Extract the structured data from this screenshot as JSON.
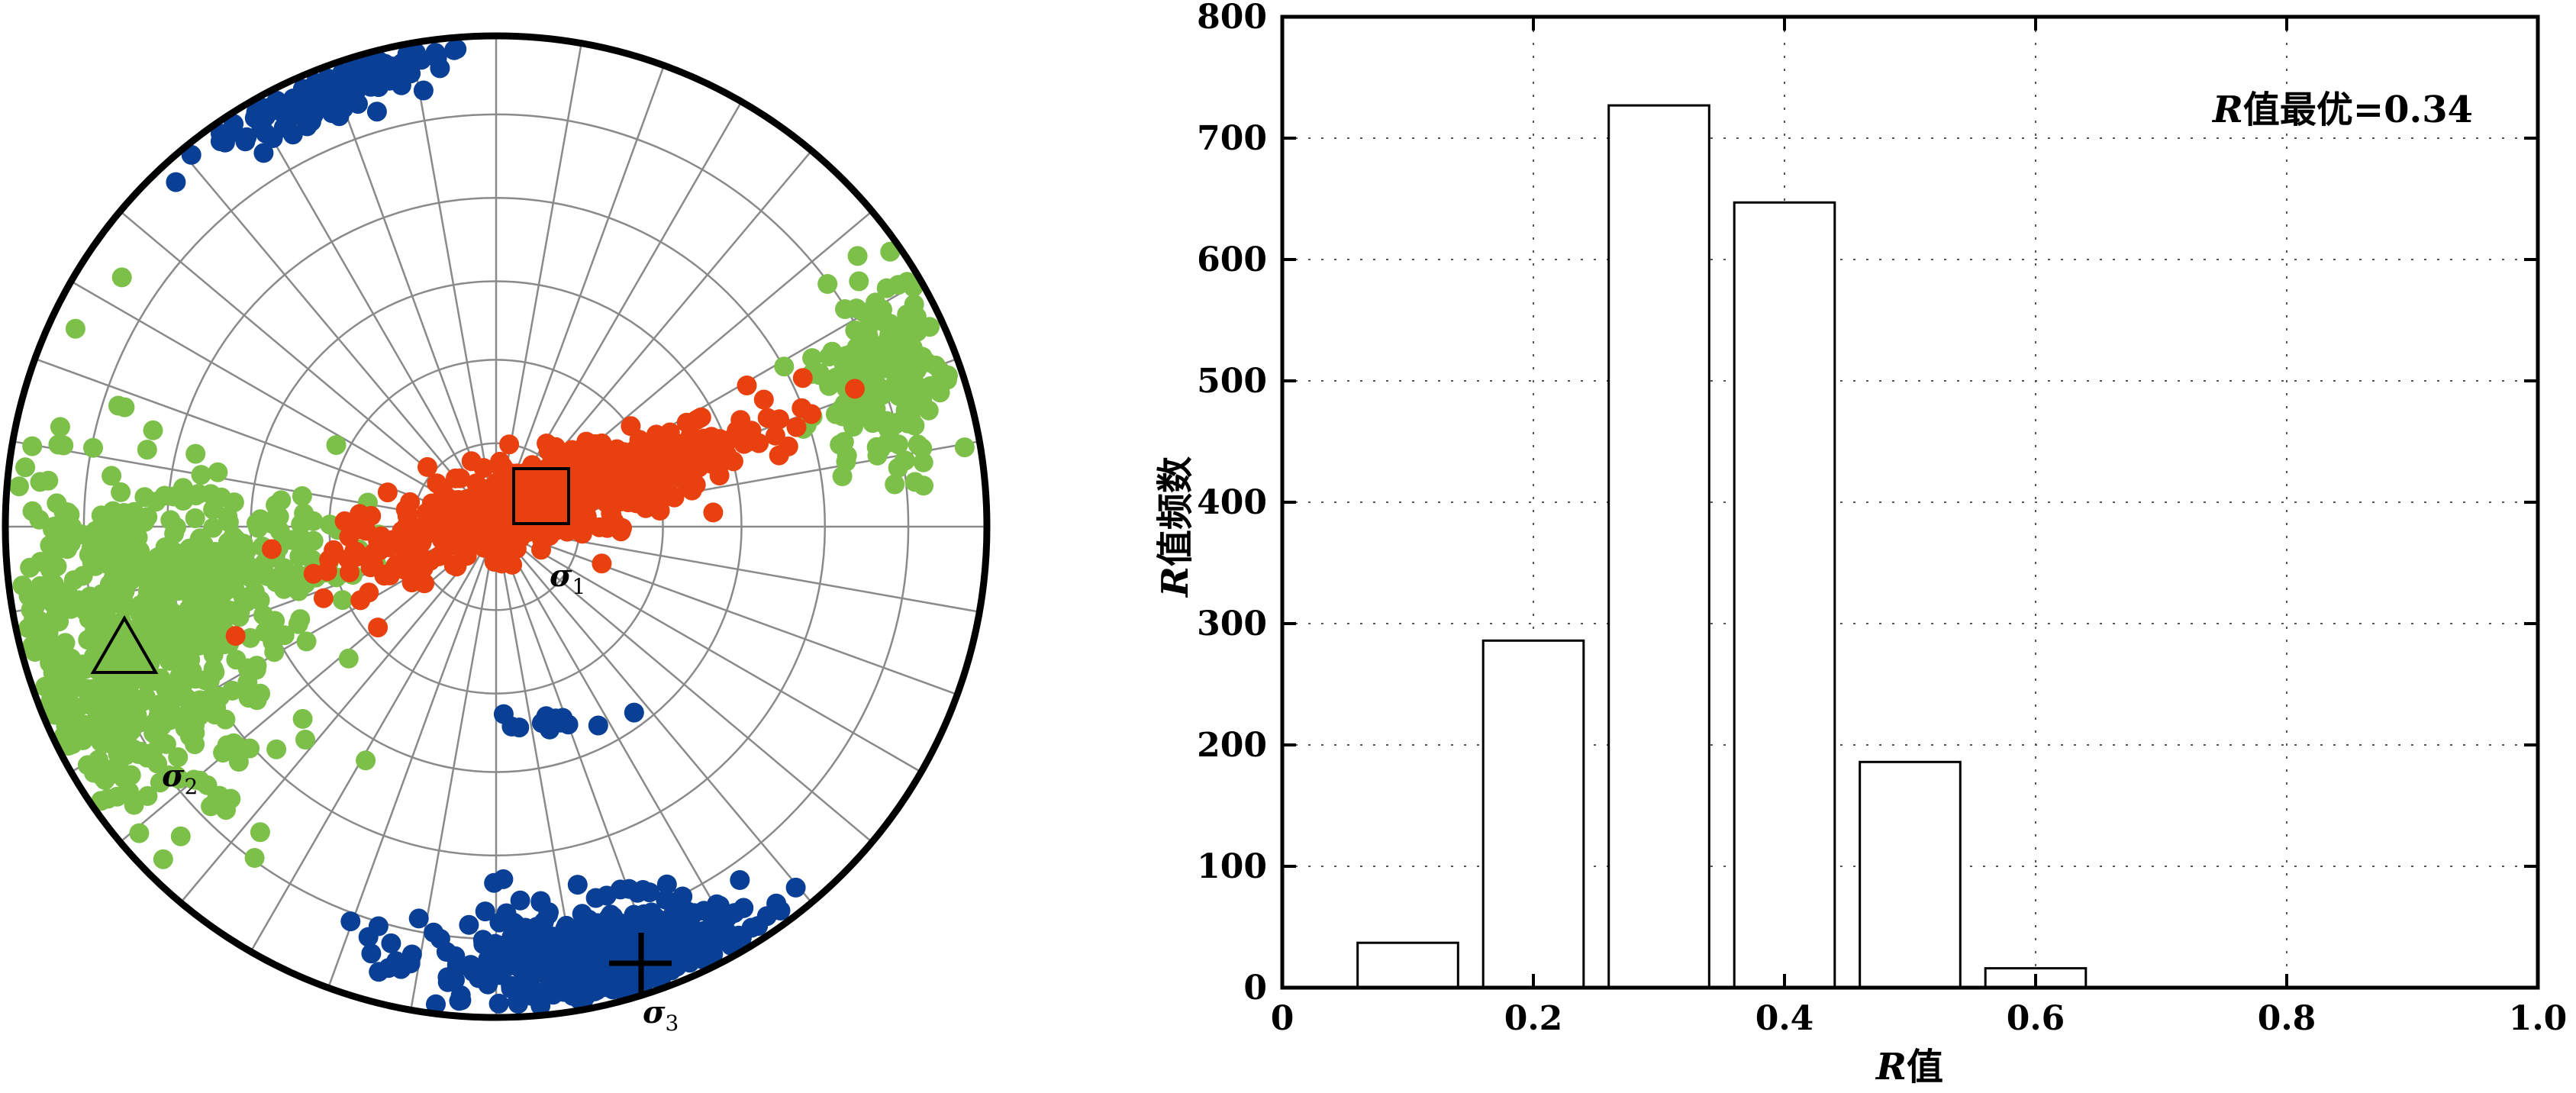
{
  "stereonet": {
    "labels": [
      {
        "key": "s1",
        "text": "σ",
        "sub": "1"
      },
      {
        "key": "s2",
        "text": "σ",
        "sub": "2"
      },
      {
        "key": "s3",
        "text": "σ",
        "sub": "3"
      }
    ],
    "colors": {
      "sigma1": "#e8410f",
      "sigma2": "#7cc04a",
      "sigma3": "#0a3f96",
      "grid": "#8a8a8a",
      "rim": "#000000"
    }
  },
  "chart_data": {
    "type": "bar",
    "categories": [
      "0.1",
      "0.2",
      "0.3",
      "0.4",
      "0.5",
      "0.6"
    ],
    "values": [
      37,
      286,
      727,
      647,
      186,
      16
    ],
    "bar_centers": [
      0.1,
      0.2,
      0.3,
      0.4,
      0.5,
      0.6
    ],
    "bar_width": 0.08,
    "xlim": [
      0,
      1.0
    ],
    "ylim": [
      0,
      800
    ],
    "xticks": [
      "0",
      "0.2",
      "0.4",
      "0.6",
      "0.8",
      "1.0"
    ],
    "yticks": [
      "0",
      "100",
      "200",
      "300",
      "400",
      "500",
      "600",
      "700",
      "800"
    ],
    "xlabel_italic": "R",
    "xlabel_rest": "值",
    "ylabel_italic": "R",
    "ylabel_rest": "值频数",
    "annotation_italic": "R",
    "annotation_rest": "值最优=0.34",
    "grid": true,
    "bar_fill": "#ffffff",
    "bar_stroke": "#000000"
  }
}
